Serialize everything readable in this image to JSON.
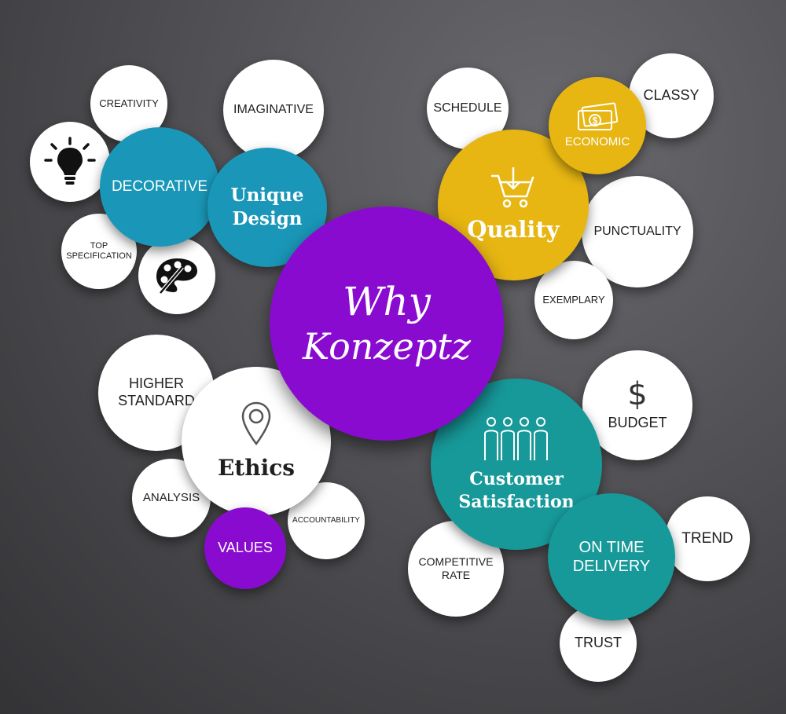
{
  "center": {
    "line1": "Why",
    "line2": "Konzeptz"
  },
  "design": {
    "hub_line1": "Unique",
    "hub_line2": "Design",
    "decorative": "DECORATIVE",
    "creativity": "CREATIVITY",
    "imaginative": "IMAGINATIVE",
    "top_line1": "TOP",
    "top_line2": "SPECIFICATION"
  },
  "quality": {
    "hub": "Quality",
    "schedule": "SCHEDULE",
    "economic": "ECONOMIC",
    "classy": "CLASSY",
    "punctuality": "PUNCTUALITY",
    "exemplary": "EXEMPLARY"
  },
  "ethics": {
    "hub": "Ethics",
    "higher_line1": "HIGHER",
    "higher_line2": "STANDARD",
    "analysis": "ANALYSIS",
    "values": "VALUES",
    "accountability": "ACCOUNTABILITY"
  },
  "customer": {
    "hub_line1": "Customer",
    "hub_line2": "Satisfaction",
    "budget": "BUDGET",
    "budget_symbol": "$",
    "trend": "TREND",
    "ontime_line1": "ON TIME",
    "ontime_line2": "DELIVERY",
    "competitive_line1": "COMPETITIVE",
    "competitive_line2": "RATE",
    "trust": "TRUST"
  },
  "icons": {
    "lightbulb": "lightbulb-icon",
    "palette": "palette-icon",
    "cart": "shopping-cart-icon",
    "money": "money-bill-icon",
    "location": "location-pin-icon",
    "people": "people-icon"
  },
  "colors": {
    "blue": "#1a97b8",
    "yellow": "#e7b612",
    "purple": "#8a0bd0",
    "teal": "#17999a"
  }
}
